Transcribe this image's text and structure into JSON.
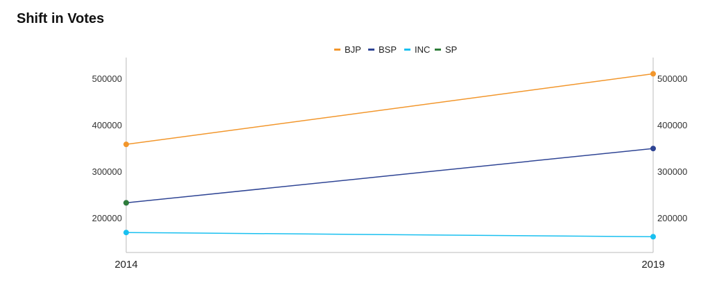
{
  "title": "Shift in Votes",
  "colors": {
    "BJP": "#F2962B",
    "BSP": "#2E4494",
    "INC": "#19C0F0",
    "SP": "#2E7D3A",
    "axis": "#BBBBBB"
  },
  "chart_data": {
    "type": "line",
    "title": "Shift in Votes",
    "categories": [
      "2014",
      "2019"
    ],
    "series": [
      {
        "name": "BJP",
        "values": [
          358000,
          510000
        ]
      },
      {
        "name": "BSP",
        "values": [
          232000,
          349000
        ]
      },
      {
        "name": "INC",
        "values": [
          168000,
          159000
        ]
      },
      {
        "name": "SP",
        "values": [
          232000,
          null
        ]
      }
    ],
    "ylim": [
      125000,
      545000
    ],
    "yticks": [
      "200000",
      "300000",
      "400000",
      "500000"
    ],
    "ytick_values": [
      200000,
      300000,
      400000,
      500000
    ],
    "y_axis_both_sides": true,
    "legend": [
      "BJP",
      "BSP",
      "INC",
      "SP"
    ],
    "legend_position": "top-center",
    "grid": false
  }
}
